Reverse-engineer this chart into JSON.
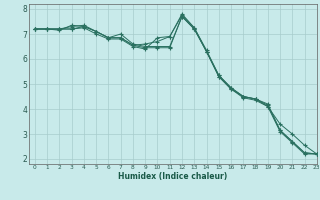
{
  "xlabel": "Humidex (Indice chaleur)",
  "bg_color": "#c8eaea",
  "grid_color": "#a8cccc",
  "line_color": "#2a7060",
  "marker_color": "#2a7060",
  "xlim": [
    -0.5,
    23
  ],
  "ylim": [
    1.8,
    8.2
  ],
  "yticks": [
    2,
    3,
    4,
    5,
    6,
    7,
    8
  ],
  "xticks": [
    0,
    1,
    2,
    3,
    4,
    5,
    6,
    7,
    8,
    9,
    10,
    11,
    12,
    13,
    14,
    15,
    16,
    17,
    18,
    19,
    20,
    21,
    22,
    23
  ],
  "lines": [
    [
      7.2,
      7.2,
      7.15,
      7.35,
      7.3,
      7.1,
      6.85,
      6.85,
      6.55,
      6.45,
      6.45,
      6.45,
      7.7,
      7.2,
      6.3,
      5.3,
      4.8,
      4.45,
      4.35,
      4.1,
      3.1,
      2.65,
      2.2,
      2.2
    ],
    [
      7.2,
      7.2,
      7.2,
      7.2,
      7.3,
      7.1,
      6.85,
      7.0,
      6.6,
      6.5,
      6.5,
      6.5,
      7.7,
      7.2,
      6.3,
      5.3,
      4.8,
      4.5,
      4.4,
      4.1,
      3.4,
      3.0,
      2.55,
      2.2
    ],
    [
      7.2,
      7.2,
      7.2,
      7.3,
      7.35,
      7.1,
      6.85,
      6.85,
      6.55,
      6.6,
      6.7,
      6.9,
      7.75,
      7.25,
      6.35,
      5.35,
      4.85,
      4.5,
      4.4,
      4.2,
      3.15,
      2.7,
      2.25,
      2.2
    ],
    [
      7.2,
      7.2,
      7.2,
      7.2,
      7.25,
      7.0,
      6.8,
      6.8,
      6.5,
      6.4,
      6.85,
      6.9,
      7.8,
      7.25,
      6.3,
      5.35,
      4.85,
      4.5,
      4.4,
      4.15,
      3.15,
      2.7,
      2.25,
      2.2
    ]
  ]
}
